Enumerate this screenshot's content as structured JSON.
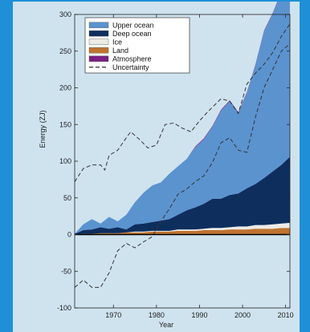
{
  "chart_data": {
    "type": "area",
    "title": "",
    "xlabel": "Year",
    "ylabel": "Energy (ZJ)",
    "xlim": [
      1961,
      2011
    ],
    "ylim": [
      -100,
      300
    ],
    "x_ticks": [
      1970,
      1980,
      1990,
      2000,
      2010
    ],
    "y_ticks": [
      -100,
      -50,
      0,
      50,
      100,
      150,
      200,
      250,
      300
    ],
    "legend_position": "top-left",
    "grid": false,
    "colors": {
      "upper_ocean": "#5b93cf",
      "deep_ocean": "#0e2e5e",
      "ice": "#ecebe6",
      "land": "#c0732f",
      "atmosphere": "#7b1f83",
      "uncertainty": "#333333",
      "zero_line": "#000000"
    },
    "x": [
      1961,
      1963,
      1965,
      1967,
      1969,
      1971,
      1973,
      1975,
      1977,
      1979,
      1981,
      1983,
      1985,
      1987,
      1989,
      1991,
      1993,
      1995,
      1997,
      1999,
      2001,
      2003,
      2005,
      2007,
      2009,
      2011
    ],
    "series": [
      {
        "name": "Upper ocean",
        "key": "upper_ocean",
        "values": [
          0,
          8,
          14,
          5,
          16,
          8,
          20,
          30,
          42,
          50,
          52,
          62,
          66,
          70,
          82,
          88,
          98,
          120,
          128,
          110,
          130,
          162,
          200,
          215,
          235,
          240
        ]
      },
      {
        "name": "Deep ocean",
        "key": "deep_ocean",
        "values": [
          1,
          5,
          6,
          8,
          6,
          8,
          4,
          10,
          11,
          12,
          14,
          16,
          20,
          26,
          30,
          34,
          40,
          40,
          44,
          45,
          52,
          56,
          64,
          72,
          80,
          90
        ]
      },
      {
        "name": "Ice",
        "key": "ice",
        "values": [
          0,
          0,
          0,
          0,
          0,
          0,
          0,
          1,
          1,
          1,
          1,
          1,
          2,
          2,
          2,
          2,
          3,
          3,
          3,
          4,
          4,
          5,
          5,
          6,
          6,
          7
        ]
      },
      {
        "name": "Land",
        "key": "land",
        "values": [
          0,
          1,
          1,
          2,
          2,
          2,
          3,
          3,
          3,
          4,
          4,
          4,
          5,
          5,
          5,
          6,
          6,
          6,
          7,
          7,
          7,
          8,
          8,
          8,
          9,
          9
        ]
      },
      {
        "name": "Atmosphere",
        "key": "atmosphere",
        "values": [
          0,
          0,
          0,
          0,
          0,
          0,
          0,
          0,
          0,
          0,
          0,
          0,
          0,
          0,
          1,
          1,
          1,
          1,
          1,
          1,
          1,
          1,
          1,
          1,
          1,
          1
        ]
      }
    ],
    "uncertainty": {
      "name": "Uncertainty",
      "upper": [
        {
          "x": 1961,
          "y": 72
        },
        {
          "x": 1963,
          "y": 90
        },
        {
          "x": 1965,
          "y": 95
        },
        {
          "x": 1967,
          "y": 95
        },
        {
          "x": 1968,
          "y": 88
        },
        {
          "x": 1969,
          "y": 108
        },
        {
          "x": 1971,
          "y": 115
        },
        {
          "x": 1973,
          "y": 132
        },
        {
          "x": 1974,
          "y": 140
        },
        {
          "x": 1976,
          "y": 130
        },
        {
          "x": 1978,
          "y": 118
        },
        {
          "x": 1980,
          "y": 122
        },
        {
          "x": 1982,
          "y": 150
        },
        {
          "x": 1984,
          "y": 152
        },
        {
          "x": 1986,
          "y": 145
        },
        {
          "x": 1988,
          "y": 140
        },
        {
          "x": 1990,
          "y": 155
        },
        {
          "x": 1992,
          "y": 168
        },
        {
          "x": 1995,
          "y": 185
        },
        {
          "x": 1997,
          "y": 182
        },
        {
          "x": 1999,
          "y": 165
        },
        {
          "x": 2001,
          "y": 205
        },
        {
          "x": 2003,
          "y": 220
        },
        {
          "x": 2005,
          "y": 232
        },
        {
          "x": 2007,
          "y": 248
        },
        {
          "x": 2009,
          "y": 270
        },
        {
          "x": 2011,
          "y": 287
        }
      ],
      "lower": [
        {
          "x": 1961,
          "y": -72
        },
        {
          "x": 1963,
          "y": -62
        },
        {
          "x": 1965,
          "y": -72
        },
        {
          "x": 1967,
          "y": -72
        },
        {
          "x": 1969,
          "y": -52
        },
        {
          "x": 1971,
          "y": -22
        },
        {
          "x": 1973,
          "y": -12
        },
        {
          "x": 1975,
          "y": -18
        },
        {
          "x": 1977,
          "y": -10
        },
        {
          "x": 1979,
          "y": -3
        },
        {
          "x": 1981,
          "y": 18
        },
        {
          "x": 1983,
          "y": 35
        },
        {
          "x": 1985,
          "y": 55
        },
        {
          "x": 1987,
          "y": 62
        },
        {
          "x": 1989,
          "y": 72
        },
        {
          "x": 1991,
          "y": 80
        },
        {
          "x": 1993,
          "y": 98
        },
        {
          "x": 1995,
          "y": 125
        },
        {
          "x": 1997,
          "y": 132
        },
        {
          "x": 1999,
          "y": 115
        },
        {
          "x": 2001,
          "y": 112
        },
        {
          "x": 2003,
          "y": 160
        },
        {
          "x": 2005,
          "y": 200
        },
        {
          "x": 2007,
          "y": 225
        },
        {
          "x": 2009,
          "y": 250
        },
        {
          "x": 2011,
          "y": 260
        }
      ]
    }
  }
}
